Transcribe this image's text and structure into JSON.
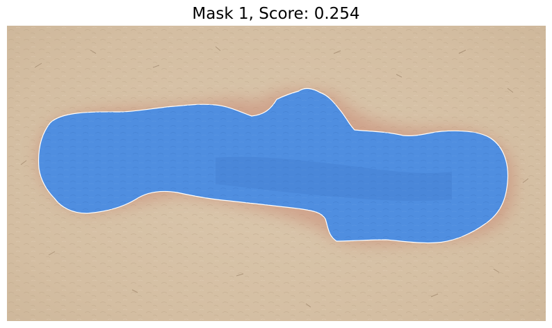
{
  "figure": {
    "title": "Mask 1, Score: 0.254"
  },
  "mask": {
    "index": 1,
    "score": 0.254,
    "fill_color": "#4f8ee0",
    "outline_color": "#ffffff"
  },
  "photo": {
    "subject": "skin-surface",
    "skin_color": "#d8c2a6",
    "redness_color": "#c98a74"
  }
}
